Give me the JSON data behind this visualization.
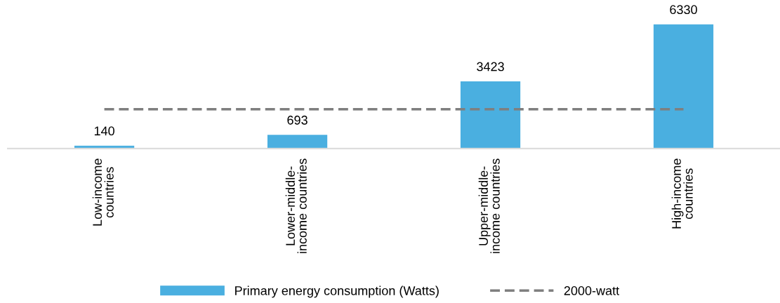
{
  "chart_data": {
    "type": "bar",
    "categories": [
      "Low-income\ncountries",
      "Lower-middle-\nincome countries",
      "Upper-middle-\nincome countries",
      "High-income\ncountries"
    ],
    "series": [
      {
        "name": "Primary energy consumption (Watts)",
        "color": "#4aafe0",
        "values": [
          140,
          693,
          3423,
          6330
        ]
      }
    ],
    "data_labels": true,
    "ref_lines": [
      {
        "axis": "y",
        "value": 2000,
        "label": "2000-watt",
        "color": "#7f7f7f",
        "line_style": "dashed"
      }
    ],
    "legend": "bottom"
  }
}
